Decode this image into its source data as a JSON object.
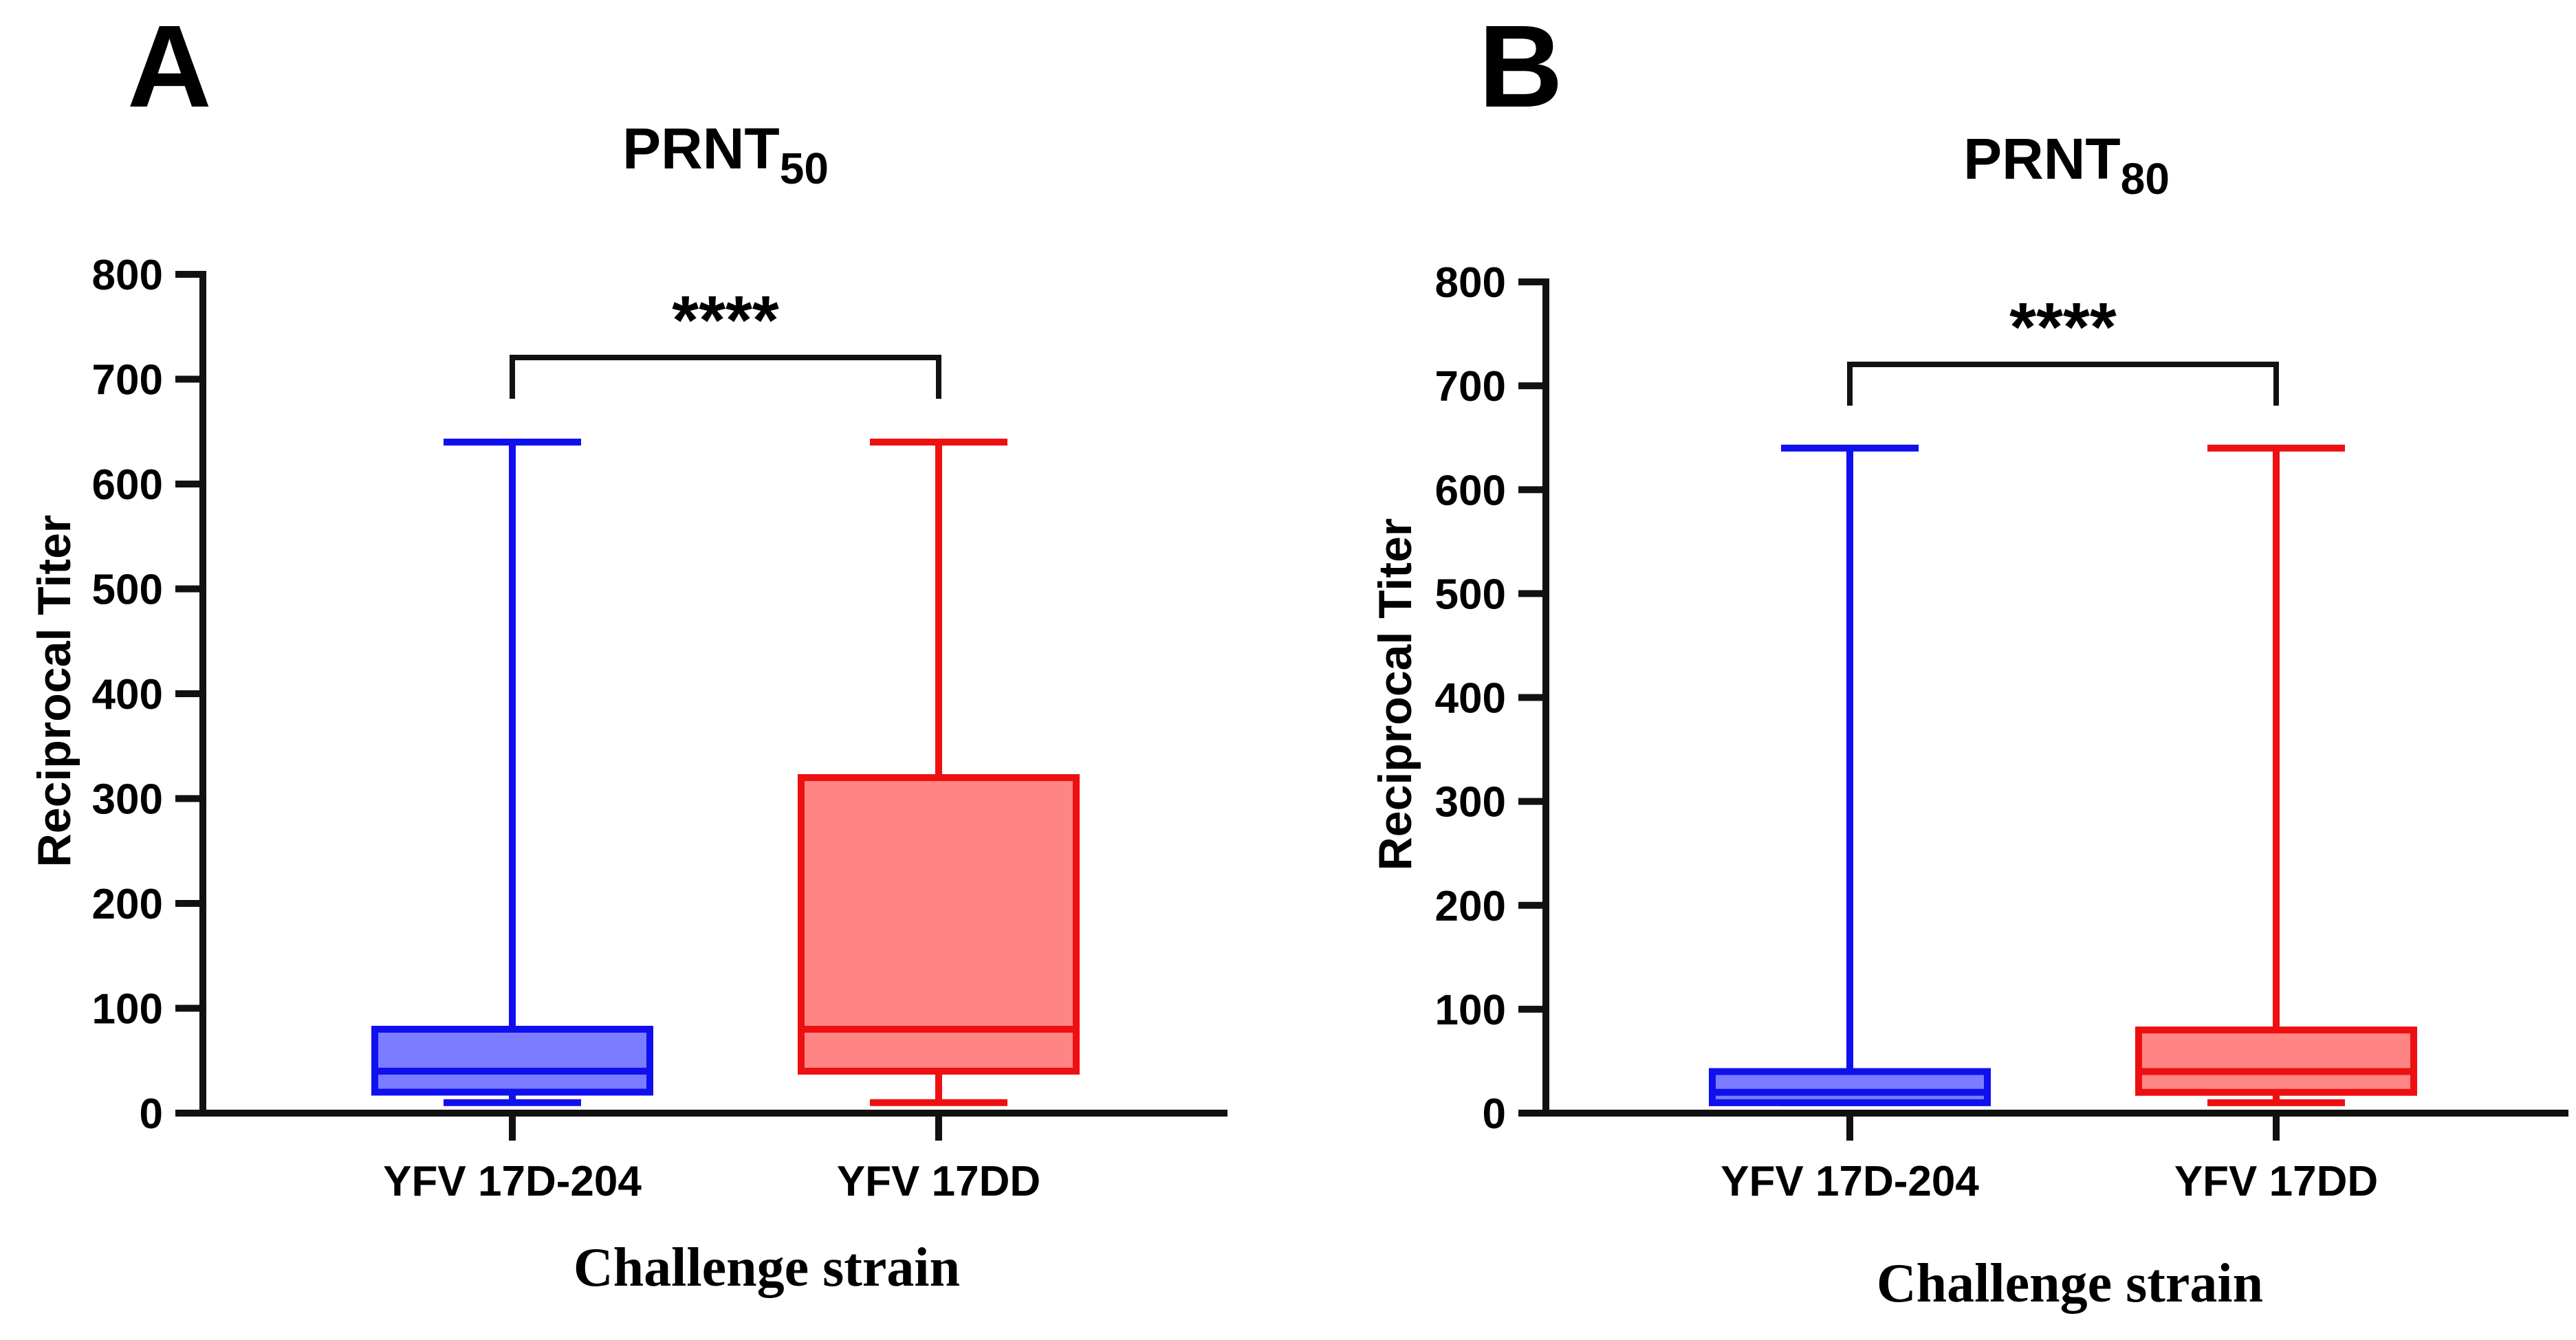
{
  "chart_data": [
    {
      "type": "box",
      "panel": "A",
      "title": "PRNT",
      "title_subscript": "50",
      "xlabel": "Challenge strain",
      "ylabel": "Reciprocal Titer",
      "ylim": [
        0,
        800
      ],
      "yticks": [
        0,
        100,
        200,
        300,
        400,
        500,
        600,
        700,
        800
      ],
      "categories": [
        "YFV 17D-204",
        "YFV 17DD"
      ],
      "series": [
        {
          "name": "YFV 17D-204",
          "color": "#1010ee",
          "fill": "#7b7cff",
          "min": 10,
          "q1": 20,
          "median": 40,
          "q3": 80,
          "max": 640
        },
        {
          "name": "YFV 17DD",
          "color": "#ee1010",
          "fill": "#ff8585",
          "min": 10,
          "q1": 40,
          "median": 80,
          "q3": 320,
          "max": 640
        }
      ],
      "significance": {
        "label": "****",
        "between": [
          0,
          1
        ],
        "level": 720
      }
    },
    {
      "type": "box",
      "panel": "B",
      "title": "PRNT",
      "title_subscript": "80",
      "xlabel": "Challenge strain",
      "ylabel": "Reciprocal Titer",
      "ylim": [
        0,
        800
      ],
      "yticks": [
        0,
        100,
        200,
        300,
        400,
        500,
        600,
        700,
        800
      ],
      "categories": [
        "YFV 17D-204",
        "YFV 17DD"
      ],
      "series": [
        {
          "name": "YFV 17D-204",
          "color": "#1010ee",
          "fill": "#7b7cff",
          "min": 10,
          "q1": 10,
          "median": 20,
          "q3": 40,
          "max": 640
        },
        {
          "name": "YFV 17DD",
          "color": "#ee1010",
          "fill": "#ff8585",
          "min": 10,
          "q1": 20,
          "median": 40,
          "q3": 80,
          "max": 640
        }
      ],
      "significance": {
        "label": "****",
        "between": [
          0,
          1
        ],
        "level": 720
      }
    }
  ]
}
